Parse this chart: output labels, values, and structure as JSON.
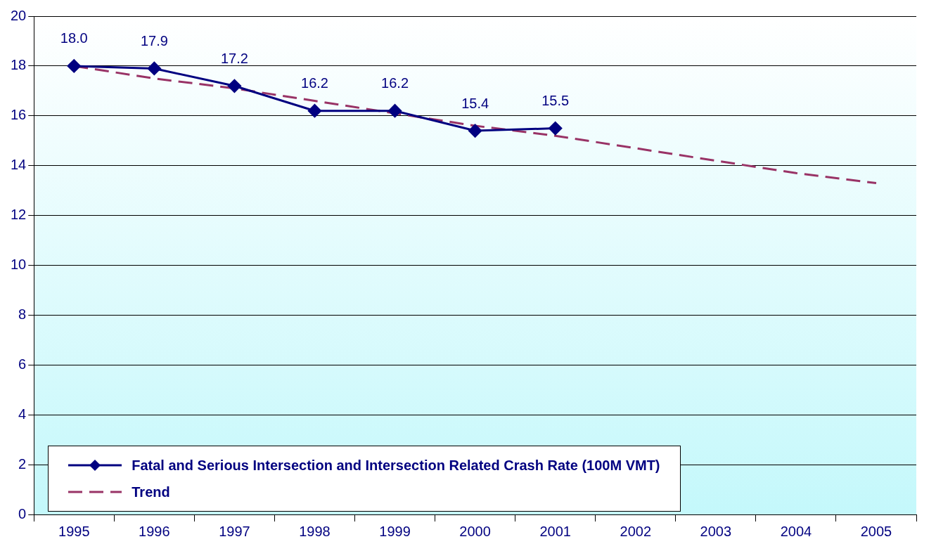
{
  "chart_data": {
    "type": "line",
    "categories": [
      "1995",
      "1996",
      "1997",
      "1998",
      "1999",
      "2000",
      "2001",
      "2002",
      "2003",
      "2004",
      "2005"
    ],
    "series": [
      {
        "name": "Fatal and Serious Intersection and Intersection Related Crash Rate (100M VMT)",
        "color": "#000080",
        "marker": "diamond",
        "line_style": "solid",
        "values": [
          18.0,
          17.9,
          17.2,
          16.2,
          16.2,
          15.4,
          15.5,
          null,
          null,
          null,
          null
        ],
        "value_labels": [
          "18.0",
          "17.9",
          "17.2",
          "16.2",
          "16.2",
          "15.4",
          "15.5",
          null,
          null,
          null,
          null
        ]
      },
      {
        "name": "Trend",
        "color": "#993366",
        "marker": "none",
        "line_style": "dashed",
        "values": [
          18.0,
          17.5,
          17.1,
          16.6,
          16.1,
          15.6,
          15.2,
          14.7,
          14.2,
          13.7,
          13.3
        ]
      }
    ],
    "ylim": [
      0,
      20
    ],
    "yticks": [
      0,
      2,
      4,
      6,
      8,
      10,
      12,
      14,
      16,
      18,
      20
    ],
    "grid": "y",
    "legend": "bottom left"
  }
}
